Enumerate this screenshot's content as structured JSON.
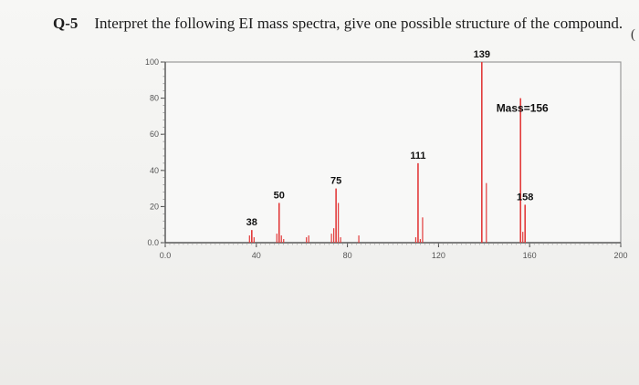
{
  "question": {
    "number": "Q-5",
    "text": "Interpret the following EI mass spectra, give one possible structure of the compound.",
    "edge_mark": "("
  },
  "chart_data": {
    "type": "bar",
    "title": "",
    "xlabel": "",
    "ylabel": "",
    "xlim": [
      0,
      200
    ],
    "ylim": [
      0,
      100
    ],
    "x_ticks": [
      {
        "value": 0,
        "label": "0.0"
      },
      {
        "value": 40,
        "label": "40"
      },
      {
        "value": 80,
        "label": "80"
      },
      {
        "value": 120,
        "label": "120"
      },
      {
        "value": 160,
        "label": "160"
      },
      {
        "value": 200,
        "label": "200"
      }
    ],
    "y_ticks": [
      {
        "value": 0,
        "label": "0.0"
      },
      {
        "value": 20,
        "label": "20"
      },
      {
        "value": 40,
        "label": "40"
      },
      {
        "value": 60,
        "label": "60"
      },
      {
        "value": 80,
        "label": "80"
      },
      {
        "value": 100,
        "label": "100"
      }
    ],
    "annotation": "Mass=156",
    "labeled_peaks": [
      {
        "mz": 38,
        "intensity": 7,
        "label": "38"
      },
      {
        "mz": 50,
        "intensity": 22,
        "label": "50"
      },
      {
        "mz": 75,
        "intensity": 30,
        "label": "75"
      },
      {
        "mz": 111,
        "intensity": 44,
        "label": "111"
      },
      {
        "mz": 139,
        "intensity": 100,
        "label": "139"
      },
      {
        "mz": 156,
        "intensity": 80,
        "label": ""
      },
      {
        "mz": 158,
        "intensity": 21,
        "label": "158"
      }
    ],
    "minor_peaks": [
      {
        "mz": 37,
        "intensity": 4
      },
      {
        "mz": 39,
        "intensity": 3
      },
      {
        "mz": 49,
        "intensity": 5
      },
      {
        "mz": 51,
        "intensity": 4
      },
      {
        "mz": 52,
        "intensity": 2
      },
      {
        "mz": 62,
        "intensity": 3
      },
      {
        "mz": 63,
        "intensity": 4
      },
      {
        "mz": 73,
        "intensity": 5
      },
      {
        "mz": 74,
        "intensity": 8
      },
      {
        "mz": 76,
        "intensity": 22
      },
      {
        "mz": 77,
        "intensity": 3
      },
      {
        "mz": 85,
        "intensity": 4
      },
      {
        "mz": 110,
        "intensity": 3
      },
      {
        "mz": 112,
        "intensity": 2
      },
      {
        "mz": 113,
        "intensity": 14
      },
      {
        "mz": 141,
        "intensity": 33
      },
      {
        "mz": 157,
        "intensity": 6
      }
    ],
    "grid": false,
    "colors": {
      "peak": "#e23b3b",
      "axis": "#444444",
      "frame": "#9a9a9a"
    }
  }
}
